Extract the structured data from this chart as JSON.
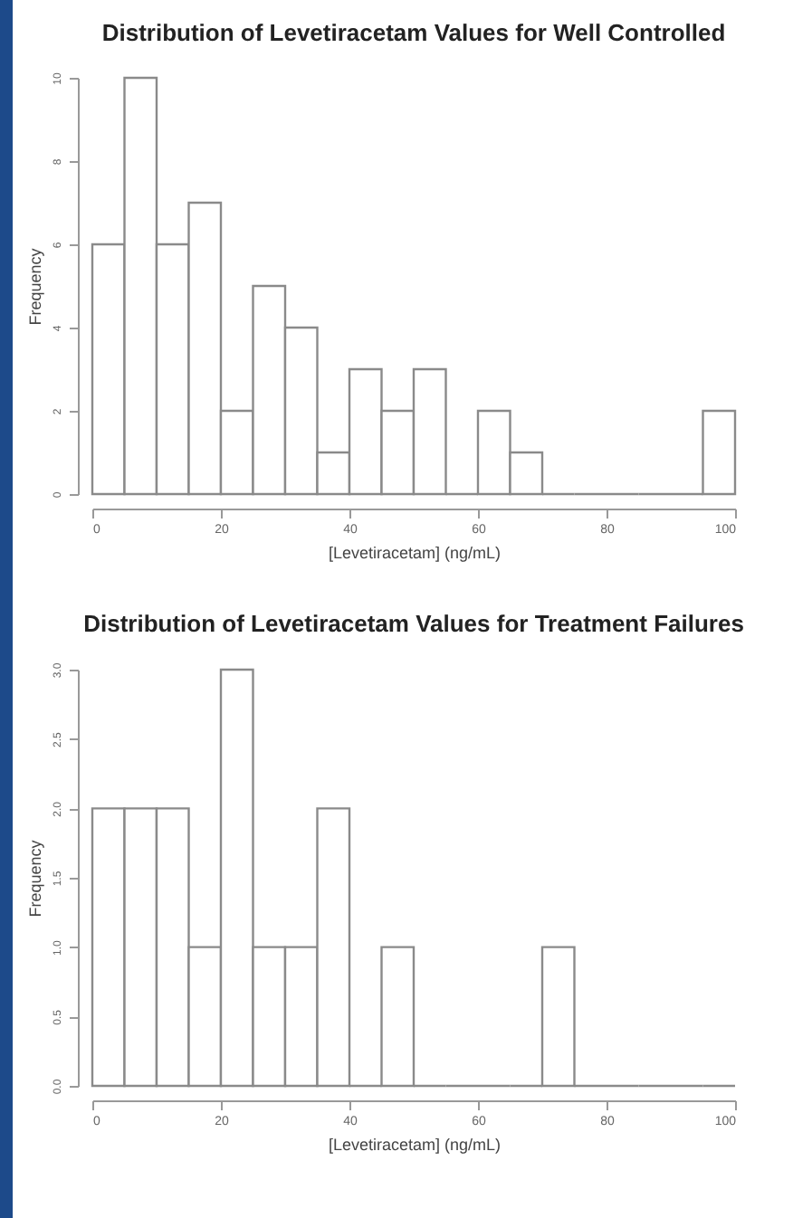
{
  "chart_data": [
    {
      "type": "histogram",
      "title": "Distribution of Levetiracetam Values for Well Controlled",
      "xlabel": "[Levetiracetam] (ng/mL)",
      "ylabel": "Frequency",
      "bins": [
        0,
        5,
        10,
        15,
        20,
        25,
        30,
        35,
        40,
        45,
        50,
        55,
        60,
        65,
        70,
        75,
        80,
        85,
        90,
        95,
        100
      ],
      "values": [
        6,
        10,
        6,
        7,
        2,
        5,
        4,
        1,
        3,
        2,
        3,
        0,
        2,
        1,
        0,
        0,
        0,
        0,
        0,
        2
      ],
      "xlim": [
        0,
        100
      ],
      "xticks": [
        0,
        20,
        40,
        60,
        80,
        100
      ],
      "ylim": [
        0,
        10
      ],
      "yticks": [
        0,
        2,
        4,
        6,
        8,
        10
      ]
    },
    {
      "type": "histogram",
      "title": "Distribution of Levetiracetam Values for Treatment Failures",
      "xlabel": "[Levetiracetam] (ng/mL)",
      "ylabel": "Frequency",
      "bins": [
        0,
        5,
        10,
        15,
        20,
        25,
        30,
        35,
        40,
        45,
        50,
        55,
        60,
        65,
        70,
        75,
        80,
        85,
        90,
        95,
        100
      ],
      "values": [
        2,
        2,
        2,
        1,
        3,
        1,
        1,
        2,
        0,
        1,
        0,
        0,
        0,
        0,
        1,
        0,
        0,
        0,
        0,
        0
      ],
      "xlim": [
        0,
        100
      ],
      "xticks": [
        0,
        20,
        40,
        60,
        80,
        100
      ],
      "ylim": [
        0,
        3
      ],
      "yticks": [
        {
          "value": 0,
          "label": "0.0"
        },
        {
          "value": 0.5,
          "label": "0.5"
        },
        {
          "value": 1,
          "label": "1.0"
        },
        {
          "value": 1.5,
          "label": "1.5"
        },
        {
          "value": 2,
          "label": "2.0"
        },
        {
          "value": 2.5,
          "label": "2.5"
        },
        {
          "value": 3,
          "label": "3.0"
        }
      ]
    }
  ]
}
